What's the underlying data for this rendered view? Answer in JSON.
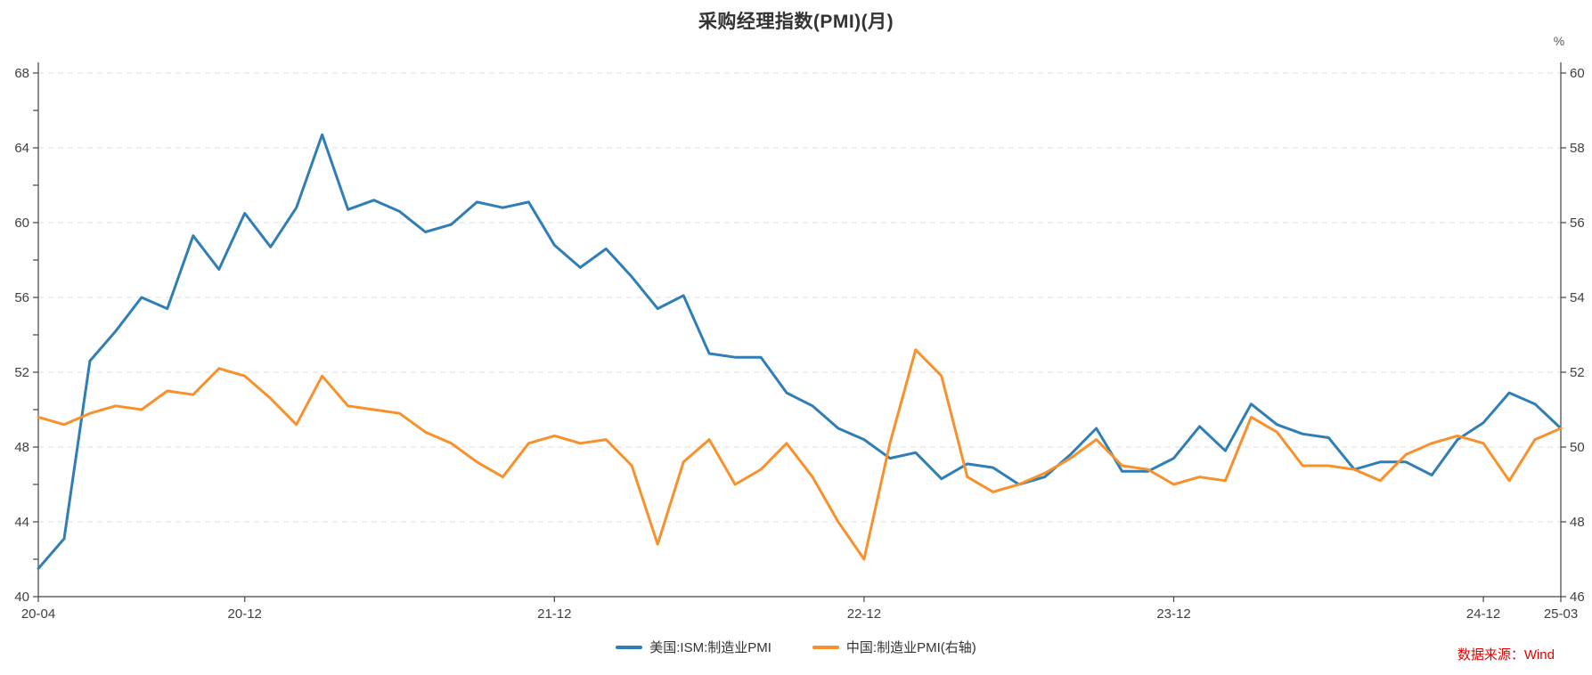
{
  "page": {
    "title": "采购经理指数(PMI)(月)",
    "source_note": "数据来源：Wind"
  },
  "colors": {
    "us_series": "#2f7eb6",
    "china_series": "#f8912c",
    "gridline": "#dcdcdc",
    "axis": "#444444",
    "tick_label": "#404040",
    "title": "#333333",
    "source_note": "#e60000"
  },
  "chart_data": {
    "type": "line",
    "title": "采购经理指数(PMI)(月)",
    "xlabel": "",
    "ylabel_right_unit": "%",
    "grid": true,
    "legend_position": "bottom",
    "x": [
      "20-04",
      "20-05",
      "20-06",
      "20-07",
      "20-08",
      "20-09",
      "20-10",
      "20-11",
      "20-12",
      "21-01",
      "21-02",
      "21-03",
      "21-04",
      "21-05",
      "21-06",
      "21-07",
      "21-08",
      "21-09",
      "21-10",
      "21-11",
      "21-12",
      "22-01",
      "22-02",
      "22-03",
      "22-04",
      "22-05",
      "22-06",
      "22-07",
      "22-08",
      "22-09",
      "22-10",
      "22-11",
      "22-12",
      "23-01",
      "23-02",
      "23-03",
      "23-04",
      "23-05",
      "23-06",
      "23-07",
      "23-08",
      "23-09",
      "23-10",
      "23-11",
      "23-12",
      "24-01",
      "24-02",
      "24-03",
      "24-04",
      "24-05",
      "24-06",
      "24-07",
      "24-08",
      "24-09",
      "24-10",
      "24-11",
      "24-12",
      "25-01",
      "25-02",
      "25-03"
    ],
    "x_ticks": [
      {
        "index": 0,
        "label": "20-04"
      },
      {
        "index": 8,
        "label": "20-12"
      },
      {
        "index": 20,
        "label": "21-12"
      },
      {
        "index": 32,
        "label": "22-12"
      },
      {
        "index": 44,
        "label": "23-12"
      },
      {
        "index": 56,
        "label": "24-12"
      },
      {
        "index": 59,
        "label": "25-03"
      }
    ],
    "left_axis": {
      "min": 40,
      "max": 68,
      "label_step": 4,
      "tick_step": 2
    },
    "right_axis": {
      "min": 46,
      "max": 60,
      "label_step": 2,
      "tick_step": 2,
      "unit": "%"
    },
    "series": [
      {
        "key": "us-ism-manufacturing-pmi",
        "name": "美国:ISM:制造业PMI",
        "axis": "left",
        "color": "#2f7eb6",
        "values": [
          41.5,
          43.1,
          52.6,
          54.2,
          56.0,
          55.4,
          59.3,
          57.5,
          60.5,
          58.7,
          60.8,
          64.7,
          60.7,
          61.2,
          60.6,
          59.5,
          59.9,
          61.1,
          60.8,
          61.1,
          58.8,
          57.6,
          58.6,
          57.1,
          55.4,
          56.1,
          53.0,
          52.8,
          52.8,
          50.9,
          50.2,
          49.0,
          48.4,
          47.4,
          47.7,
          46.3,
          47.1,
          46.9,
          46.0,
          46.4,
          47.6,
          49.0,
          46.7,
          46.7,
          47.4,
          49.1,
          47.8,
          50.3,
          49.2,
          48.7,
          48.5,
          46.8,
          47.2,
          47.2,
          46.5,
          48.4,
          49.3,
          50.9,
          50.3,
          49.0
        ]
      },
      {
        "key": "china-manufacturing-pmi",
        "name": "中国:制造业PMI(右轴)",
        "axis": "right",
        "color": "#f8912c",
        "values": [
          50.8,
          50.6,
          50.9,
          51.1,
          51.0,
          51.5,
          51.4,
          52.1,
          51.9,
          51.3,
          50.6,
          51.9,
          51.1,
          51.0,
          50.9,
          50.4,
          50.1,
          49.6,
          49.2,
          50.1,
          50.3,
          50.1,
          50.2,
          49.5,
          47.4,
          49.6,
          50.2,
          49.0,
          49.4,
          50.1,
          49.2,
          48.0,
          47.0,
          50.1,
          52.6,
          51.9,
          49.2,
          48.8,
          49.0,
          49.3,
          49.7,
          50.2,
          49.5,
          49.4,
          49.0,
          49.2,
          49.1,
          50.8,
          50.4,
          49.5,
          49.5,
          49.4,
          49.1,
          49.8,
          50.1,
          50.3,
          50.1,
          49.1,
          50.2,
          50.5
        ]
      }
    ]
  }
}
